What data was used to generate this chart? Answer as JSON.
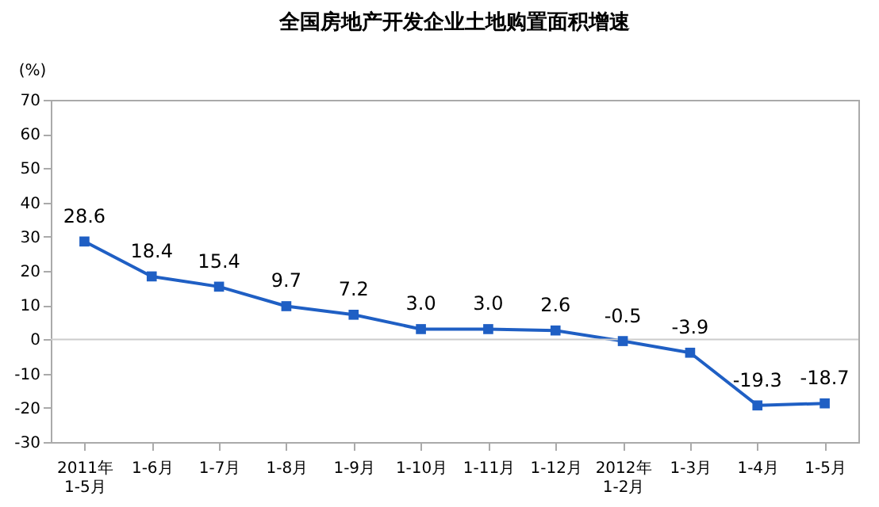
{
  "chart_data": {
    "type": "line",
    "title": "全国房地产开发企业土地购置面积增速",
    "ylabel": "(%)",
    "categories": [
      "2011年\n1-5月",
      "1-6月",
      "1-7月",
      "1-8月",
      "1-9月",
      "1-10月",
      "1-11月",
      "1-12月",
      "2012年\n1-2月",
      "1-3月",
      "1-4月",
      "1-5月"
    ],
    "series": [
      {
        "color": "#1f5fc4",
        "values": [
          28.6,
          18.4,
          15.4,
          9.7,
          7.2,
          3.0,
          3.0,
          2.6,
          -0.5,
          -3.9,
          -19.3,
          -18.7
        ],
        "value_labels": [
          "28.6",
          "18.4",
          "15.4",
          "9.7",
          "7.2",
          "3.0",
          "3.0",
          "2.6",
          "-0.5",
          "-3.9",
          "-19.3",
          "-18.7"
        ]
      }
    ],
    "ref_lines": [
      {
        "axis": "y",
        "value": 0,
        "color": "#cccccc"
      }
    ],
    "ylim": [
      -30,
      70
    ],
    "yticks": [
      -30,
      -20,
      -10,
      0,
      10,
      20,
      30,
      40,
      50,
      60,
      70
    ],
    "grid": false,
    "marker": "square",
    "line_style": "solid"
  }
}
